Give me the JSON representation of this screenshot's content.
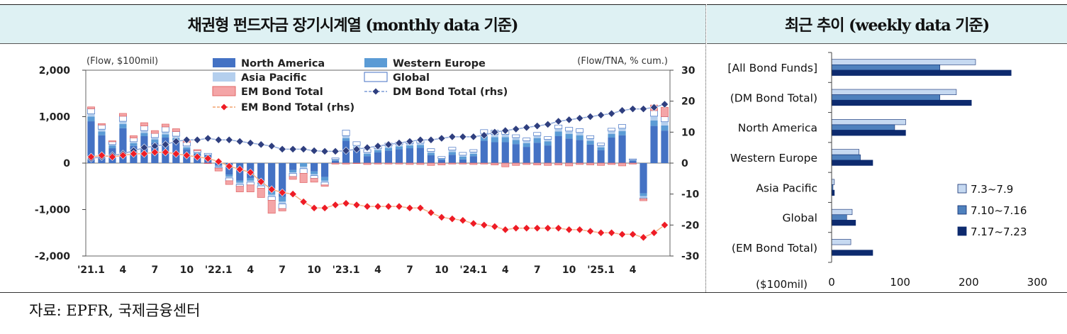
{
  "header_left": "채권형 펀드자금 장기시계열 (monthly data 기준)",
  "header_right": "최근 추이 (weekly data 기준)",
  "source": "자료: EPFR, 국제금융센터",
  "chart_data": [
    {
      "type": "bar",
      "stacked": true,
      "title": "채권형 펀드자금 장기시계열 (monthly data 기준)",
      "y_unit_label": "(Flow, $100mil)",
      "y2_unit_label": "(Flow/TNA, % cum.)",
      "ylim": [
        -2000,
        2000
      ],
      "y_ticks": [
        2000,
        1000,
        0,
        -1000,
        -2000
      ],
      "y_tick_labels": [
        "2,000",
        "1,000",
        "0",
        "-1,000",
        "-2,000"
      ],
      "y2lim": [
        -30,
        30
      ],
      "y2_ticks": [
        30,
        20,
        10,
        0,
        -10,
        -20,
        -30
      ],
      "x_tick_labels": [
        "'21.1",
        "4",
        "7",
        "10",
        "'22.1",
        "4",
        "7",
        "10",
        "'23.1",
        "4",
        "7",
        "10",
        "'24.1",
        "4",
        "7",
        "10",
        "'25.1",
        "4"
      ],
      "categories": [
        "21.1",
        "21.2",
        "21.3",
        "21.4",
        "21.5",
        "21.6",
        "21.7",
        "21.8",
        "21.9",
        "21.10",
        "21.11",
        "21.12",
        "22.1",
        "22.2",
        "22.3",
        "22.4",
        "22.5",
        "22.6",
        "22.7",
        "22.8",
        "22.9",
        "22.10",
        "22.11",
        "22.12",
        "23.1",
        "23.2",
        "23.3",
        "23.4",
        "23.5",
        "23.6",
        "23.7",
        "23.8",
        "23.9",
        "23.10",
        "23.11",
        "23.12",
        "24.1",
        "24.2",
        "24.3",
        "24.4",
        "24.5",
        "24.6",
        "24.7",
        "24.8",
        "24.9",
        "24.10",
        "24.11",
        "24.12",
        "25.1",
        "25.2",
        "25.3",
        "25.4",
        "25.5",
        "25.6",
        "25.7"
      ],
      "legend": {
        "position": "top-center",
        "entries": [
          "North America",
          "Western Europe",
          "Asia Pacific",
          "Global",
          "EM Bond Total",
          "DM Bond Total (rhs)",
          "EM Bond Total (rhs)"
        ]
      },
      "series": [
        {
          "name": "North America",
          "color": "#4472c4",
          "values": [
            900,
            600,
            320,
            750,
            370,
            580,
            440,
            550,
            480,
            300,
            200,
            170,
            -50,
            -250,
            -380,
            -320,
            -400,
            -600,
            -730,
            -150,
            0,
            -180,
            -300,
            50,
            480,
            280,
            150,
            230,
            270,
            300,
            320,
            330,
            170,
            70,
            180,
            80,
            150,
            480,
            450,
            450,
            410,
            350,
            440,
            380,
            580,
            530,
            500,
            400,
            280,
            550,
            600,
            50,
            -650,
            800,
            700
          ],
          "rel_rhs": false
        },
        {
          "name": "Western Europe",
          "color": "#5b9bd5",
          "values": [
            100,
            80,
            60,
            90,
            60,
            70,
            70,
            70,
            60,
            40,
            20,
            0,
            -20,
            -40,
            -40,
            -60,
            -60,
            -80,
            -100,
            -50,
            -80,
            -60,
            -80,
            20,
            60,
            60,
            50,
            50,
            60,
            60,
            60,
            60,
            50,
            20,
            60,
            60,
            50,
            100,
            110,
            110,
            90,
            80,
            100,
            90,
            100,
            100,
            100,
            80,
            60,
            80,
            90,
            10,
            -60,
            120,
            110
          ]
        },
        {
          "name": "Asia Pacific",
          "color": "#b4cfee",
          "values": [
            60,
            50,
            20,
            60,
            30,
            50,
            40,
            50,
            40,
            30,
            10,
            10,
            -20,
            -30,
            -40,
            -30,
            -30,
            -40,
            -50,
            -20,
            -40,
            -30,
            -30,
            10,
            50,
            40,
            30,
            30,
            40,
            40,
            40,
            40,
            30,
            10,
            40,
            30,
            40,
            60,
            60,
            60,
            50,
            50,
            50,
            40,
            60,
            60,
            60,
            50,
            40,
            60,
            60,
            10,
            -40,
            90,
            80
          ]
        },
        {
          "name": "Global",
          "color": "#ffffff",
          "values": [
            110,
            90,
            60,
            110,
            80,
            100,
            90,
            110,
            100,
            80,
            40,
            30,
            -20,
            -60,
            -40,
            -60,
            -50,
            -80,
            -100,
            -70,
            -100,
            -60,
            -60,
            30,
            120,
            80,
            60,
            50,
            60,
            50,
            50,
            70,
            60,
            40,
            60,
            60,
            50,
            80,
            90,
            80,
            60,
            60,
            70,
            60,
            80,
            80,
            80,
            60,
            50,
            60,
            80,
            20,
            -20,
            120,
            110
          ]
        },
        {
          "name": "EM Bond Total",
          "color": "#f4a5a7",
          "values": [
            40,
            30,
            20,
            60,
            50,
            70,
            60,
            60,
            60,
            40,
            20,
            -10,
            -60,
            -80,
            -120,
            -150,
            -200,
            -280,
            -50,
            -60,
            -200,
            -80,
            -30,
            -20,
            -20,
            -10,
            -30,
            -20,
            -20,
            -20,
            -30,
            -30,
            -50,
            -40,
            -20,
            -20,
            -30,
            -20,
            -40,
            -80,
            -50,
            -30,
            -40,
            -50,
            -40,
            -60,
            -30,
            -40,
            -50,
            -30,
            -60,
            -20,
            -40,
            120,
            200
          ]
        },
        {
          "name": "DM Bond Total (rhs)",
          "type": "line",
          "axis": "right",
          "color": "#2f3f7f",
          "values": [
            1.5,
            2,
            2.5,
            3,
            4,
            5,
            5.5,
            6,
            7,
            7.5,
            7.5,
            8,
            7.5,
            7.5,
            7,
            6.5,
            6,
            5.5,
            4.5,
            4.5,
            4.5,
            4,
            3.8,
            3.8,
            4,
            4.5,
            5,
            5.5,
            6,
            6.5,
            7,
            7.5,
            7.5,
            8,
            8.5,
            8.5,
            8.5,
            9,
            10,
            10.5,
            11,
            11.5,
            12,
            12.5,
            13.5,
            14,
            14.5,
            15,
            15.5,
            16,
            17,
            17.5,
            17.5,
            18,
            19
          ]
        },
        {
          "name": "EM Bond Total (rhs)",
          "type": "line",
          "axis": "right",
          "color": "#ee1c25",
          "values": [
            2,
            2.5,
            2,
            2.5,
            3,
            3,
            3.5,
            3.5,
            3,
            2.5,
            2,
            1.5,
            0.5,
            -1,
            -2,
            -3,
            -6,
            -8.5,
            -9.5,
            -10,
            -12.5,
            -14.5,
            -14.5,
            -13.5,
            -13,
            -13.5,
            -14,
            -14,
            -14,
            -14,
            -14.5,
            -14.5,
            -16,
            -17.5,
            -18,
            -18.5,
            -19.5,
            -20,
            -20.5,
            -21.5,
            -21,
            -21,
            -21,
            -21,
            -21,
            -21.5,
            -21.5,
            -22,
            -22.5,
            -22.5,
            -23,
            -23,
            -24,
            -22.5,
            -20
          ]
        }
      ]
    },
    {
      "type": "bar",
      "orientation": "horizontal",
      "title": "최근 추이 (weekly data 기준)",
      "categories": [
        "[All Bond Funds]",
        "(DM Bond Total)",
        "North America",
        "Western Europe",
        "Asia Pacific",
        "Global",
        "(EM Bond Total)"
      ],
      "xlim": [
        0,
        300
      ],
      "x_ticks": [
        0,
        100,
        200,
        300
      ],
      "xlabel": "($100mil)",
      "legend": {
        "position": "bottom-right",
        "entries": [
          "7.3~7.9",
          "7.10~7.16",
          "7.17~7.23"
        ]
      },
      "series": [
        {
          "name": "7.3~7.9",
          "color": "#c6d9f1",
          "values": [
            210,
            182,
            108,
            40,
            4,
            30,
            28
          ]
        },
        {
          "name": "7.10~7.16",
          "color": "#4f81bd",
          "values": [
            158,
            158,
            92,
            42,
            2,
            22,
            0
          ]
        },
        {
          "name": "7.17~7.23",
          "color": "#0d2a6e",
          "values": [
            262,
            204,
            108,
            60,
            4,
            35,
            60
          ]
        }
      ]
    }
  ]
}
